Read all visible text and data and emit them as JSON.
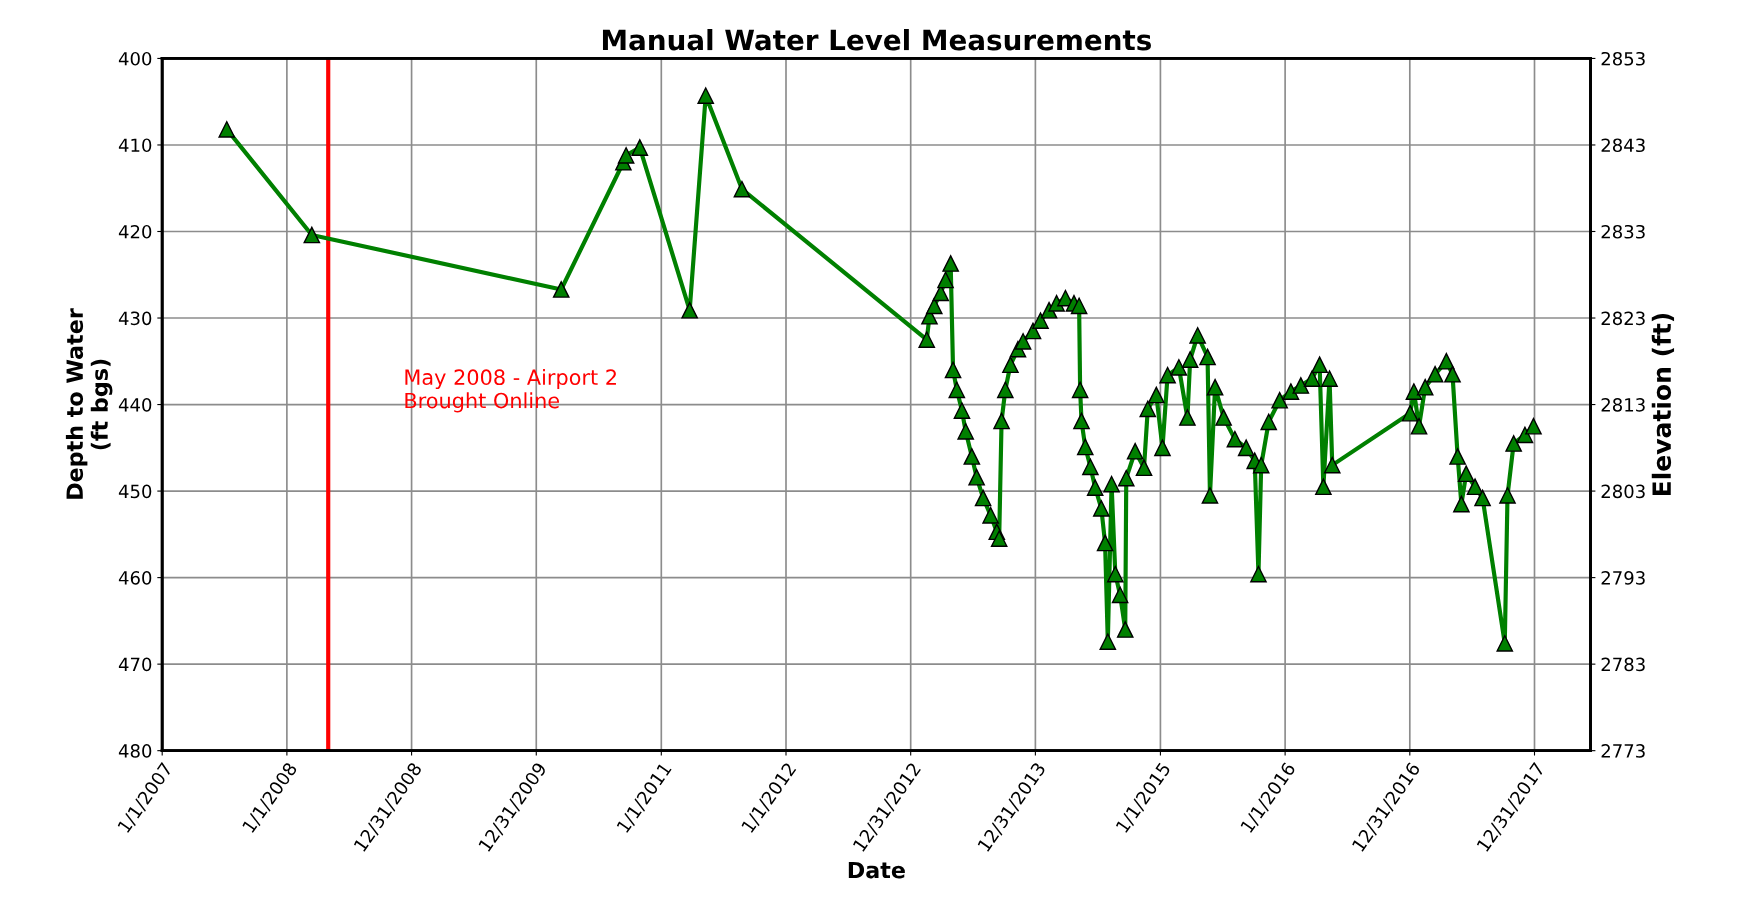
{
  "chart_data": {
    "type": "line",
    "title": "Manual Water Level Measurements",
    "xlabel": "Date",
    "ylabel": "Depth to Water\n(ft bgs)",
    "y2label": "Elevation (ft)",
    "x": [
      "2007-07-09",
      "2008-03-14",
      "2010-03-14",
      "2010-09-12",
      "2010-09-20",
      "2010-10-30",
      "2011-03-25",
      "2011-05-11",
      "2011-08-25",
      "2013-02-16",
      "2013-02-24",
      "2013-03-10",
      "2013-03-29",
      "2013-04-12",
      "2013-04-27",
      "2013-05-04",
      "2013-05-15",
      "2013-05-30",
      "2013-06-10",
      "2013-06-28",
      "2013-07-12",
      "2013-07-31",
      "2013-08-22",
      "2013-09-09",
      "2013-09-16",
      "2013-09-23",
      "2013-10-04",
      "2013-10-19",
      "2013-11-10",
      "2013-11-25",
      "2013-12-24",
      "2014-01-15",
      "2014-02-09",
      "2014-03-03",
      "2014-03-29",
      "2014-04-23",
      "2014-05-08",
      "2014-05-11",
      "2014-05-15",
      "2014-05-26",
      "2014-06-10",
      "2014-06-24",
      "2014-07-12",
      "2014-07-23",
      "2014-07-31",
      "2014-08-11",
      "2014-08-22",
      "2014-09-05",
      "2014-09-20",
      "2014-09-23",
      "2014-10-19",
      "2014-11-14",
      "2014-11-25",
      "2014-12-20",
      "2015-01-07",
      "2015-01-22",
      "2015-02-24",
      "2015-03-21",
      "2015-03-29",
      "2015-04-20",
      "2015-05-19",
      "2015-05-26",
      "2015-06-10",
      "2015-07-05",
      "2015-08-07",
      "2015-09-09",
      "2015-10-04",
      "2015-10-15",
      "2015-10-23",
      "2015-11-14",
      "2015-12-16",
      "2016-01-18",
      "2016-02-16",
      "2016-03-20",
      "2016-04-11",
      "2016-04-22",
      "2016-05-10",
      "2016-05-18",
      "2017-01-01",
      "2017-01-12",
      "2017-01-27",
      "2017-02-14",
      "2017-03-15",
      "2017-04-17",
      "2017-05-05",
      "2017-05-20",
      "2017-05-31",
      "2017-06-14",
      "2017-07-10",
      "2017-08-01",
      "2017-10-05",
      "2017-10-13",
      "2017-10-31",
      "2017-12-03",
      "2017-12-28"
    ],
    "series": [
      {
        "color": "#008000",
        "values": [
          408.2,
          420.4,
          426.7,
          412.0,
          411.2,
          410.3,
          429.1,
          404.3,
          415.1,
          432.5,
          429.8,
          428.6,
          427.1,
          425.6,
          423.7,
          436.0,
          438.3,
          440.7,
          443.1,
          446.0,
          448.4,
          450.8,
          452.8,
          454.7,
          455.5,
          441.9,
          438.3,
          435.4,
          433.6,
          432.7,
          431.5,
          430.3,
          429.1,
          428.3,
          427.7,
          428.3,
          428.6,
          438.3,
          441.9,
          444.9,
          447.2,
          449.6,
          452.0,
          456.0,
          467.4,
          449.2,
          459.6,
          462.0,
          466.0,
          448.5,
          445.4,
          447.3,
          440.5,
          438.9,
          445.0,
          436.6,
          435.7,
          441.5,
          434.8,
          432.0,
          434.5,
          450.5,
          438.0,
          441.5,
          444.0,
          445.0,
          446.5,
          459.6,
          447.0,
          442.0,
          439.5,
          438.5,
          437.8,
          437.0,
          435.4,
          449.5,
          437.0,
          447.0,
          441.0,
          438.5,
          442.5,
          438.0,
          436.5,
          435.0,
          436.5,
          446.0,
          451.5,
          448.0,
          449.5,
          450.8,
          467.6,
          450.5,
          444.5,
          443.5,
          442.5
        ]
      }
    ],
    "xlim": [
      "2007-01-01",
      "2018-06-13"
    ],
    "xticks": [
      {
        "value": "2007-01-01",
        "label": "1/1/2007"
      },
      {
        "value": "2008-01-01",
        "label": "1/1/2008"
      },
      {
        "value": "2008-12-31",
        "label": "12/31/2008"
      },
      {
        "value": "2009-12-31",
        "label": "12/31/2009"
      },
      {
        "value": "2011-01-01",
        "label": "1/1/2011"
      },
      {
        "value": "2012-01-01",
        "label": "1/1/2012"
      },
      {
        "value": "2012-12-31",
        "label": "12/31/2012"
      },
      {
        "value": "2013-12-31",
        "label": "12/31/2013"
      },
      {
        "value": "2015-01-01",
        "label": "1/1/2015"
      },
      {
        "value": "2016-01-01",
        "label": "1/1/2016"
      },
      {
        "value": "2016-12-31",
        "label": "12/31/2016"
      },
      {
        "value": "2017-12-31",
        "label": "12/31/2017"
      }
    ],
    "ylim": [
      480,
      400
    ],
    "yticks": [
      400,
      410,
      420,
      430,
      440,
      450,
      460,
      470,
      480
    ],
    "y2lim": [
      2773,
      2853
    ],
    "y2ticks": [
      2773,
      2783,
      2793,
      2803,
      2813,
      2823,
      2833,
      2843,
      2853
    ],
    "ref_lines": [
      {
        "axis": "x",
        "value": "2008-05-01",
        "label": "May 2008 - Airport 2\nBrought Online",
        "color": "#ff0000",
        "line_style": "solid"
      }
    ],
    "grid": true,
    "marker": "triangle",
    "line_style": "solid"
  }
}
